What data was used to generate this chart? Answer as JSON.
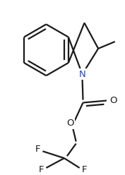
{
  "background_color": "#ffffff",
  "line_color": "#1a1a1a",
  "N_color": "#2244cc",
  "O_color": "#1a1a1a",
  "F_color": "#1a1a1a",
  "lw": 1.6,
  "figsize": [
    1.77,
    2.48
  ],
  "dpi": 100,
  "xlim": [
    0,
    177
  ],
  "ylim": [
    0,
    248
  ]
}
